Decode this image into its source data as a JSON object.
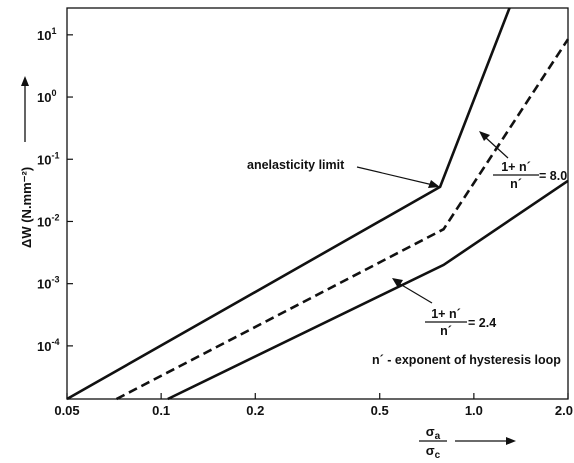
{
  "chart_data": {
    "type": "line",
    "xlabel": {
      "numerator": "σa",
      "denominator": "σc",
      "num_main": "σ",
      "num_sub": "a",
      "den_main": "σ",
      "den_sub": "c"
    },
    "ylabel": "ΔW (N.mm⁻²)",
    "x_scale": "log",
    "y_scale": "log",
    "xlim": [
      0.05,
      2.0
    ],
    "ylim": [
      1.4e-05,
      27
    ],
    "x_ticks": [
      {
        "value": 0.05,
        "label": "0.05"
      },
      {
        "value": 0.1,
        "label": "0.1"
      },
      {
        "value": 0.2,
        "label": "0.2"
      },
      {
        "value": 0.5,
        "label": "0.5"
      },
      {
        "value": 1.0,
        "label": "1.0"
      },
      {
        "value": 2.0,
        "label": "2.0"
      }
    ],
    "y_ticks": [
      {
        "value": 0.0001,
        "base": "10",
        "exp": "-4"
      },
      {
        "value": 0.001,
        "base": "10",
        "exp": "-3"
      },
      {
        "value": 0.01,
        "base": "10",
        "exp": "-2"
      },
      {
        "value": 0.1,
        "base": "10",
        "exp": "-1"
      },
      {
        "value": 1,
        "base": "10",
        "exp": "0"
      },
      {
        "value": 10,
        "base": "10",
        "exp": "1"
      }
    ],
    "grid": false,
    "series": [
      {
        "style": "solid",
        "x": [
          0.05,
          0.78,
          1.3
        ],
        "y": [
          1.4e-05,
          0.036,
          27
        ]
      },
      {
        "style": "dashed",
        "x": [
          0.072,
          0.8,
          2.0
        ],
        "y": [
          1.4e-05,
          0.0075,
          8.5
        ]
      },
      {
        "style": "solid",
        "x": [
          0.105,
          0.8,
          2.0
        ],
        "y": [
          1.4e-05,
          0.002,
          0.045
        ]
      }
    ],
    "annotations": {
      "anelasticity": "anelasticity limit",
      "frac_num": "1+ n´",
      "frac_den": "n´",
      "value_upper": "= 8.0",
      "value_lower": "= 2.4",
      "note": "n´ - exponent of hysteresis loop"
    }
  }
}
